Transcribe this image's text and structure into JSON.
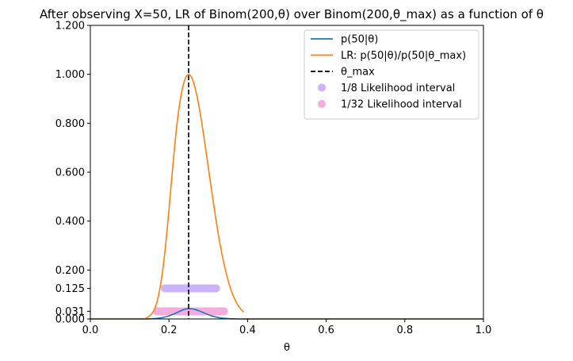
{
  "chart_data": {
    "type": "line",
    "title": "After observing X=50, LR of Binom(200,θ) over Binom(200,θ_max) as a function of θ",
    "xlabel": "θ",
    "ylabel": "",
    "xlim": [
      0.0,
      1.0
    ],
    "ylim": [
      0.0,
      1.2
    ],
    "x_ticks": [
      {
        "value": 0.0,
        "label": "0.0"
      },
      {
        "value": 0.2,
        "label": "0.2"
      },
      {
        "value": 0.4,
        "label": "0.4"
      },
      {
        "value": 0.6,
        "label": "0.6"
      },
      {
        "value": 0.8,
        "label": "0.8"
      },
      {
        "value": 1.0,
        "label": "1.0"
      }
    ],
    "y_ticks": [
      {
        "value": 0.0,
        "label": "0.000"
      },
      {
        "value": 0.03125,
        "label": "0.031"
      },
      {
        "value": 0.125,
        "label": "0.125"
      },
      {
        "value": 0.2,
        "label": "0.200"
      },
      {
        "value": 0.4,
        "label": "0.400"
      },
      {
        "value": 0.6,
        "label": "0.600"
      },
      {
        "value": 0.8,
        "label": "0.800"
      },
      {
        "value": 1.0,
        "label": "1.000"
      },
      {
        "value": 1.2,
        "label": "1.200"
      }
    ],
    "grid": false,
    "legend_position": "top-right",
    "series": [
      {
        "name": "p(50|θ)",
        "kind": "line",
        "color": "#1f77b4",
        "x": [
          0.15,
          0.17,
          0.19,
          0.2,
          0.21,
          0.22,
          0.23,
          0.24,
          0.25,
          0.26,
          0.27,
          0.28,
          0.29,
          0.3,
          0.31,
          0.33,
          0.35,
          0.37
        ],
        "y": [
          0.0005,
          0.0024,
          0.0077,
          0.0124,
          0.0185,
          0.0258,
          0.0333,
          0.0396,
          0.0419,
          0.0409,
          0.0371,
          0.031,
          0.0241,
          0.0176,
          0.0119,
          0.0046,
          0.0014,
          0.0004
        ]
      },
      {
        "name": "LR: p(50|θ)/p(50|θ_max)",
        "kind": "line",
        "color": "#ff7f0e",
        "x": [
          0.14,
          0.15,
          0.16,
          0.17,
          0.18,
          0.19,
          0.2,
          0.21,
          0.22,
          0.23,
          0.24,
          0.25,
          0.26,
          0.27,
          0.28,
          0.29,
          0.3,
          0.31,
          0.32,
          0.33,
          0.34,
          0.35,
          0.36,
          0.37,
          0.38,
          0.39
        ],
        "y": [
          0.003,
          0.011,
          0.03,
          0.073,
          0.153,
          0.279,
          0.446,
          0.629,
          0.791,
          0.907,
          0.977,
          1.0,
          0.979,
          0.921,
          0.835,
          0.732,
          0.62,
          0.508,
          0.401,
          0.305,
          0.225,
          0.16,
          0.109,
          0.072,
          0.046,
          0.028
        ]
      },
      {
        "name": "θ_max",
        "kind": "vline",
        "color": "#000000",
        "x": 0.25
      },
      {
        "name": "1/8 Likelihood interval",
        "kind": "interval",
        "color": "#cbb3fb",
        "y": 0.125,
        "x_range": [
          0.19,
          0.32
        ]
      },
      {
        "name": "1/32 Likelihood interval",
        "kind": "interval",
        "color": "#f4acde",
        "y": 0.03125,
        "x_range": [
          0.17,
          0.34
        ]
      }
    ]
  }
}
